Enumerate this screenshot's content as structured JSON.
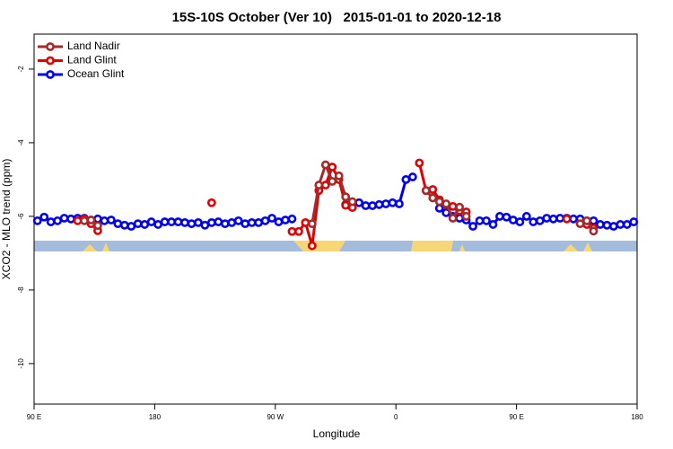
{
  "chart_data": {
    "type": "line",
    "title": "15S-10S October (Ver 10)   2015-01-01 to 2020-12-18",
    "x_label": "Longitude",
    "y_label": "XCO2 - MLO trend (ppm)",
    "xlim": [
      90,
      540
    ],
    "xticks": [
      {
        "value": 90,
        "label": "90 E"
      },
      180,
      {
        "value": 270,
        "label": "90 W"
      },
      {
        "value": 360,
        "label": "0"
      },
      {
        "value": 450,
        "label": "90 E"
      },
      {
        "value": 540,
        "label": "180"
      }
    ],
    "ylim": [
      -11.1,
      -1.05
    ],
    "yticks": [
      -2,
      -4,
      -6,
      -8,
      -10
    ],
    "legend": "top-left",
    "series": [
      {
        "name": "Land Nadir",
        "color": "#a52a2a",
        "x": [
          127.5,
          132.5,
          137.5,
          200,
          297.5,
          302.5,
          307.5,
          312.5,
          317.5,
          322.5,
          327.5,
          350,
          382.5,
          387.5,
          392.5,
          397.5,
          402.5,
          407.5,
          412.5,
          450,
          497.5,
          502.5,
          507.5
        ],
        "values": [
          -6.12,
          -6.1,
          -6.25,
          null,
          -6.2,
          -5.15,
          -4.6,
          -5.05,
          -4.9,
          -5.47,
          -5.6,
          null,
          -5.3,
          -5.5,
          -5.6,
          -5.66,
          -6.05,
          -5.75,
          -6.0,
          null,
          -6.2,
          -6.12,
          -6.4
        ]
      },
      {
        "name": "Land Glint",
        "color": "#e00000",
        "x": [
          122.5,
          127.5,
          132.5,
          137.5,
          180,
          222.5,
          250,
          282.5,
          287.5,
          292.5,
          297.5,
          302.5,
          307.5,
          312.5,
          317.5,
          322.5,
          327.5,
          350,
          377.5,
          382.5,
          387.5,
          392.5,
          397.5,
          402.5,
          407.5,
          412.5,
          440,
          487.5,
          495,
          502.5,
          507.5
        ],
        "values": [
          -6.12,
          -6.07,
          -6.2,
          -6.39,
          null,
          -5.63,
          null,
          -6.41,
          -6.41,
          -6.17,
          -6.8,
          -5.3,
          -5.15,
          -4.66,
          -5.0,
          -5.7,
          -5.76,
          null,
          -4.55,
          -5.3,
          -5.27,
          -5.55,
          -5.68,
          -5.73,
          -5.85,
          -5.88,
          null,
          -6.07,
          null,
          -6.22,
          -6.32
        ]
      },
      {
        "name": "Ocean Glint",
        "color": "#0000ee",
        "x": [
          92.5,
          97.5,
          102.5,
          107.5,
          112.5,
          117.5,
          122.5,
          127.5,
          132.5,
          137.5,
          142.5,
          147.5,
          152.5,
          157.5,
          162.5,
          167.5,
          172.5,
          177.5,
          182.5,
          187.5,
          192.5,
          197.5,
          202.5,
          207.5,
          212.5,
          217.5,
          222.5,
          227.5,
          232.5,
          237.5,
          242.5,
          247.5,
          252.5,
          257.5,
          262.5,
          267.5,
          272.5,
          277.5,
          282.5,
          287.5,
          292.5,
          297.5,
          302.5,
          307.5,
          312.5,
          317.5,
          322.5,
          327.5,
          332.5,
          337.5,
          342.5,
          347.5,
          352.5,
          357.5,
          362.5,
          367.5,
          372.5,
          377.5,
          382.5,
          387.5,
          392.5,
          397.5,
          402.5,
          407.5,
          412.5,
          417.5,
          422.5,
          427.5,
          432.5,
          437.5,
          442.5,
          447.5,
          452.5,
          457.5,
          462.5,
          467.5,
          472.5,
          477.5,
          482.5,
          487.5,
          492.5,
          497.5,
          502.5,
          507.5,
          512.5,
          517.5,
          522.5,
          527.5,
          532.5,
          537.5
        ],
        "values": [
          -6.12,
          -6.02,
          -6.15,
          -6.12,
          -6.05,
          -6.07,
          -6.05,
          -6.05,
          -6.1,
          -6.07,
          -6.12,
          -6.1,
          -6.2,
          -6.24,
          -6.27,
          -6.2,
          -6.22,
          -6.15,
          -6.22,
          -6.15,
          -6.15,
          -6.15,
          -6.17,
          -6.2,
          -6.17,
          -6.24,
          -6.17,
          -6.15,
          -6.2,
          -6.17,
          -6.12,
          -6.2,
          -6.17,
          -6.17,
          -6.12,
          -6.05,
          -6.15,
          -6.1,
          -6.07,
          null,
          null,
          null,
          null,
          null,
          null,
          null,
          -5.68,
          -5.66,
          -5.63,
          -5.71,
          -5.71,
          -5.68,
          -5.66,
          -5.63,
          -5.66,
          -5.0,
          -4.93,
          null,
          null,
          null,
          -5.78,
          -5.9,
          -6.0,
          -6.05,
          -6.1,
          -6.27,
          -6.12,
          -6.12,
          -6.22,
          -6.0,
          -6.02,
          -6.1,
          -6.15,
          -6.0,
          -6.15,
          -6.12,
          -6.05,
          -6.07,
          -6.05,
          -6.05,
          -6.07,
          -6.07,
          -6.12,
          -6.12,
          -6.22,
          -6.24,
          -6.27,
          -6.22,
          -6.22,
          -6.15
        ]
      }
    ]
  }
}
